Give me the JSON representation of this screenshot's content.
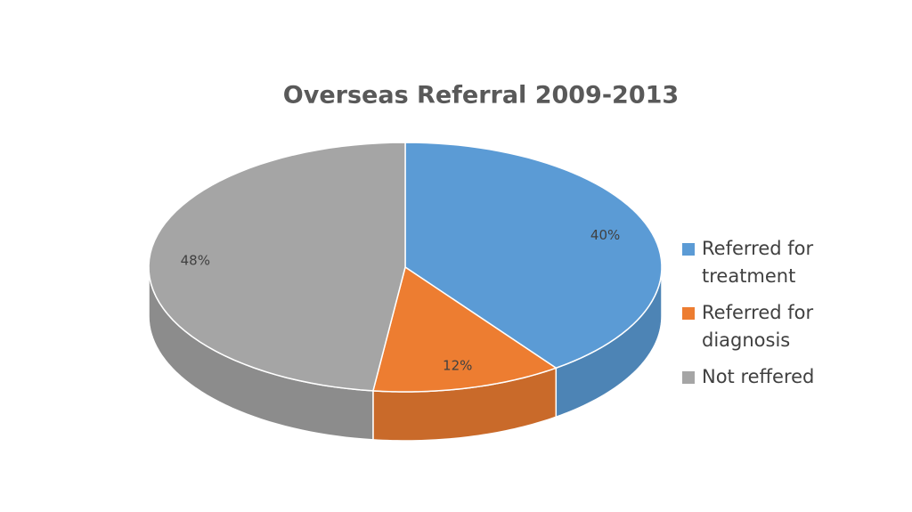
{
  "chart_data": {
    "type": "pie3d",
    "title": "Overseas Referral 2009-2013",
    "categories": [
      "Referred for treatment",
      "Referred for diagnosis",
      "Not reffered"
    ],
    "values": [
      40,
      12,
      48
    ],
    "value_labels": [
      "40%",
      "12%",
      "48%"
    ],
    "colors": [
      "#5b9bd5",
      "#ed7d31",
      "#a5a5a5"
    ],
    "legend": "right"
  }
}
